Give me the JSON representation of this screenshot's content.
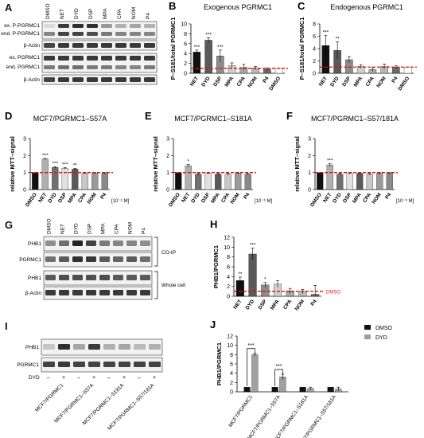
{
  "panels": {
    "A": {
      "letter": "A",
      "lanes": [
        "DMSO",
        "NET",
        "DYD",
        "DSP",
        "MPA",
        "CPA",
        "NOM",
        "P4"
      ],
      "row_labels": [
        "ex. P-PGRMC1",
        "end. P-PGRMC1",
        "β-Actin",
        "ex. PGRMC1",
        "end. PGRMC1",
        "β-Actin"
      ]
    },
    "G": {
      "letter": "G",
      "lanes": [
        "DMSO",
        "NET",
        "DYD",
        "DSP",
        "MPA",
        "CPA",
        "NOM",
        "P4"
      ],
      "row_labels": [
        "PHB1",
        "PGRMC1",
        "PHB1",
        "β-Actin"
      ],
      "bracket_labels": [
        "CO-IP",
        "Whole cell"
      ]
    },
    "I": {
      "letter": "I",
      "row_labels": [
        "PHB1",
        "PGRMC1"
      ],
      "treatment_label": "DYD",
      "signs": [
        "–",
        "+",
        "–",
        "+",
        "–",
        "+",
        "–",
        "+"
      ],
      "groups": [
        "MCF7/PGRMC1",
        "MCF7/PGRMC1–S57A",
        "MCF7/PGRMC1–S181A",
        "MCF7/PGRMC1–S57/181A"
      ]
    },
    "D_unit": "[10⁻⁶ M]"
  },
  "chart_data": [
    {
      "id": "B",
      "letter": "B",
      "type": "bar",
      "title": "Exogenous PGRMC1",
      "ylabel": "P–S181/total PGRMC1",
      "categories": [
        "NET",
        "DYD",
        "DSP",
        "MPA",
        "CPA",
        "NOM",
        "P4",
        "DMSO"
      ],
      "values": [
        4.3,
        6.7,
        3.5,
        1.6,
        1.2,
        1.1,
        0.8,
        1.0
      ],
      "errors": [
        0.4,
        0.5,
        1.2,
        0.5,
        0.6,
        0.3,
        0.3,
        0
      ],
      "stars": [
        "***",
        "***",
        "***",
        "",
        "",
        "",
        "",
        ""
      ],
      "ylim": [
        0,
        10
      ],
      "yticks": [
        0,
        2,
        4,
        6,
        8,
        10
      ],
      "refline": 1,
      "colors": [
        "#111111",
        "#5a5a5a",
        "#8c8c8c",
        "#d0d0d0",
        "#a8a8a8",
        "#b8b8b8",
        "#6a6a6a",
        "#ffffff"
      ]
    },
    {
      "id": "C",
      "letter": "C",
      "type": "bar",
      "title": "Endogenous PGRMC1",
      "ylabel": "P–S181/total PGRMC1",
      "categories": [
        "NET",
        "DYD",
        "DSP",
        "MPA",
        "CPA",
        "NOM",
        "P4",
        "DMSO"
      ],
      "values": [
        4.5,
        3.7,
        2.2,
        1.1,
        0.6,
        1.1,
        1.0,
        1.0
      ],
      "errors": [
        1.6,
        1.4,
        0.5,
        0.3,
        0.3,
        0.4,
        0.2,
        0
      ],
      "stars": [
        "***",
        "**",
        "",
        "",
        "",
        "",
        "",
        ""
      ],
      "ylim": [
        0,
        8
      ],
      "yticks": [
        0,
        2,
        4,
        6,
        8
      ],
      "refline": 1,
      "colors": [
        "#111111",
        "#5a5a5a",
        "#8c8c8c",
        "#d0d0d0",
        "#a8a8a8",
        "#b8b8b8",
        "#6a6a6a",
        "#ffffff"
      ]
    },
    {
      "id": "D",
      "letter": "D",
      "type": "bar",
      "title": "MCF7/PGRMC1–S57A",
      "ylabel": "relative MTT–signal",
      "unit": "[10⁻⁶ M]",
      "categories": [
        "DMSO",
        "NET",
        "DYD",
        "DSP",
        "MPA",
        "CPA",
        "NOM",
        "P4"
      ],
      "values": [
        1.0,
        1.8,
        1.3,
        1.25,
        1.2,
        0.95,
        0.95,
        0.95
      ],
      "errors": [
        0,
        0.03,
        0.05,
        0.05,
        0.05,
        0.04,
        0.04,
        0.04
      ],
      "stars": [
        "",
        "***",
        "***",
        "***",
        "**",
        "",
        "",
        ""
      ],
      "ylim": [
        0,
        3
      ],
      "yticks": [
        0,
        1,
        2,
        3
      ],
      "refline": 1,
      "colors": [
        "#111111",
        "#b0b0b0",
        "#707070",
        "#e0e0e0",
        "#5a5a5a",
        "#c8c8c8",
        "#9a9a9a",
        "#8a8a8a"
      ]
    },
    {
      "id": "E",
      "letter": "E",
      "type": "bar",
      "title": "MCF7/PGRMC1–S181A",
      "ylabel": "relative MTT–signal",
      "unit": "[10⁻⁶ M]",
      "categories": [
        "DMSO",
        "NET",
        "DYD",
        "DSP",
        "MPA",
        "CPA",
        "NOM",
        "P4"
      ],
      "values": [
        1.0,
        1.4,
        0.9,
        0.95,
        0.9,
        0.9,
        0.95,
        0.9
      ],
      "errors": [
        0,
        0.08,
        0.04,
        0.04,
        0.04,
        0.04,
        0.04,
        0.04
      ],
      "stars": [
        "",
        "*",
        "",
        "",
        "",
        "",
        "",
        ""
      ],
      "ylim": [
        0,
        3
      ],
      "yticks": [
        0,
        1,
        2,
        3
      ],
      "refline": 1,
      "colors": [
        "#111111",
        "#b0b0b0",
        "#707070",
        "#e0e0e0",
        "#5a5a5a",
        "#c8c8c8",
        "#9a9a9a",
        "#8a8a8a"
      ]
    },
    {
      "id": "F",
      "letter": "F",
      "type": "bar",
      "title": "MCF7/PGRMC1–S57/181A",
      "ylabel": "relative MTT–signal",
      "unit": "[10⁻⁶ M]",
      "categories": [
        "DMSO",
        "NET",
        "DYD",
        "DSP",
        "MPA",
        "CPA",
        "NOM",
        "P4"
      ],
      "values": [
        1.0,
        1.45,
        0.9,
        0.95,
        0.95,
        0.9,
        0.95,
        0.95
      ],
      "errors": [
        0,
        0.08,
        0.04,
        0.04,
        0.04,
        0.04,
        0.04,
        0.04
      ],
      "stars": [
        "",
        "***",
        "",
        "",
        "",
        "",
        "",
        ""
      ],
      "ylim": [
        0,
        3
      ],
      "yticks": [
        0,
        1,
        2,
        3
      ],
      "refline": 1,
      "colors": [
        "#111111",
        "#b0b0b0",
        "#707070",
        "#e0e0e0",
        "#5a5a5a",
        "#c8c8c8",
        "#9a9a9a",
        "#8a8a8a"
      ]
    },
    {
      "id": "H",
      "letter": "H",
      "type": "bar",
      "ylabel": "PHB1/PGRMC1",
      "refline_label": "DMSO",
      "categories": [
        "NET",
        "DYD",
        "DSP",
        "MPA",
        "CPA",
        "NOM",
        "P4"
      ],
      "values": [
        3.2,
        8.6,
        2.3,
        2.5,
        1.1,
        1.0,
        0.4
      ],
      "errors": [
        0.7,
        1.2,
        0.5,
        0.7,
        0.5,
        0.4,
        1.8
      ],
      "stars": [
        "**",
        "***",
        "*",
        "",
        "",
        "",
        ""
      ],
      "ylim": [
        0,
        12
      ],
      "yticks": [
        0,
        2,
        4,
        6,
        8,
        10,
        12
      ],
      "refline": 1,
      "colors": [
        "#111111",
        "#5a5a5a",
        "#8c8c8c",
        "#d0d0d0",
        "#a8a8a8",
        "#b8b8b8",
        "#6a6a6a"
      ]
    },
    {
      "id": "J",
      "letter": "J",
      "type": "bar",
      "ylabel": "PHB1/PGRMC1",
      "categories": [
        "MCF7/PGRMC1",
        "MCF7/PGRMC1–S57A",
        "MCF7/PGRMC1–S181A",
        "MCF7/PGRMC1–S57/181A"
      ],
      "series": [
        {
          "name": "DMSO",
          "values": [
            1.0,
            1.0,
            1.0,
            1.0
          ],
          "errors": [
            0,
            0,
            0,
            0
          ],
          "color": "#111111"
        },
        {
          "name": "DYD",
          "values": [
            8.0,
            3.2,
            0.7,
            0.6
          ],
          "errors": [
            0.3,
            0.6,
            0.3,
            0.4
          ],
          "color": "#a0a0a0"
        }
      ],
      "stars": [
        "***",
        "***"
      ],
      "ylim": [
        0,
        12
      ],
      "yticks": [
        0,
        2,
        4,
        6,
        8,
        10,
        12
      ],
      "legend": "top-right"
    }
  ]
}
